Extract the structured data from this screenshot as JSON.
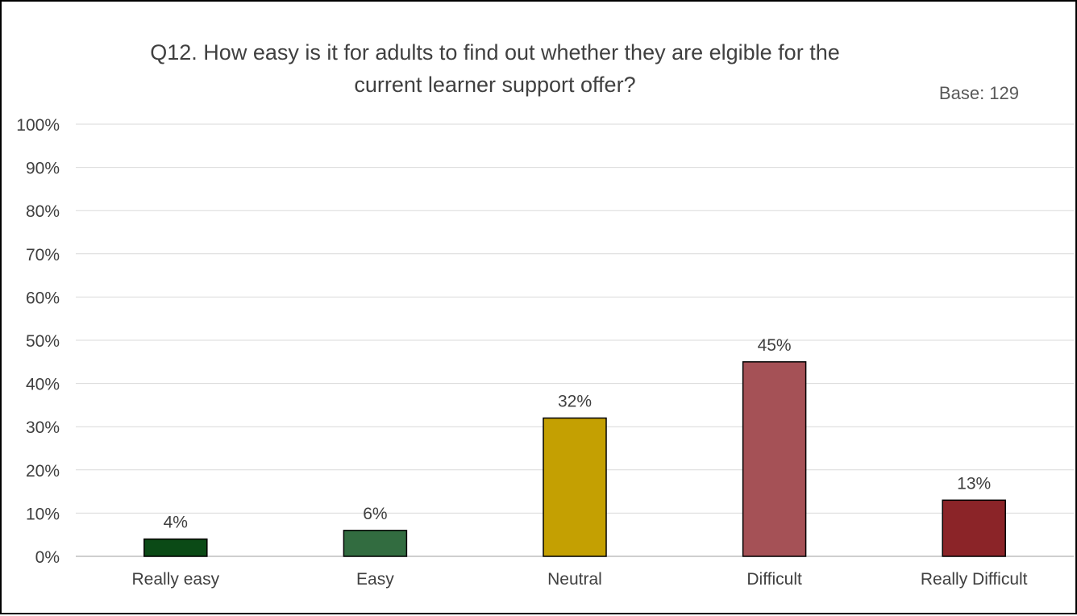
{
  "chart_data": {
    "type": "bar",
    "title_lines": [
      "Q12. How easy is it for adults to find out whether they are elgible for the",
      "current learner support offer?"
    ],
    "base_label": "Base: 129",
    "categories": [
      "Really easy",
      "Easy",
      "Neutral",
      "Difficult",
      "Really Difficult"
    ],
    "values": [
      4,
      6,
      32,
      45,
      13
    ],
    "value_labels": [
      "4%",
      "6%",
      "32%",
      "45%",
      "13%"
    ],
    "bar_colors": [
      "#0b4a16",
      "#326c40",
      "#c4a002",
      "#a55156",
      "#8b2428"
    ],
    "ylim": [
      0,
      100
    ],
    "y_ticks": [
      0,
      10,
      20,
      30,
      40,
      50,
      60,
      70,
      80,
      90,
      100
    ],
    "y_tick_labels": [
      "0%",
      "10%",
      "20%",
      "30%",
      "40%",
      "50%",
      "60%",
      "70%",
      "80%",
      "90%",
      "100%"
    ],
    "grid": true,
    "legend": "none"
  }
}
